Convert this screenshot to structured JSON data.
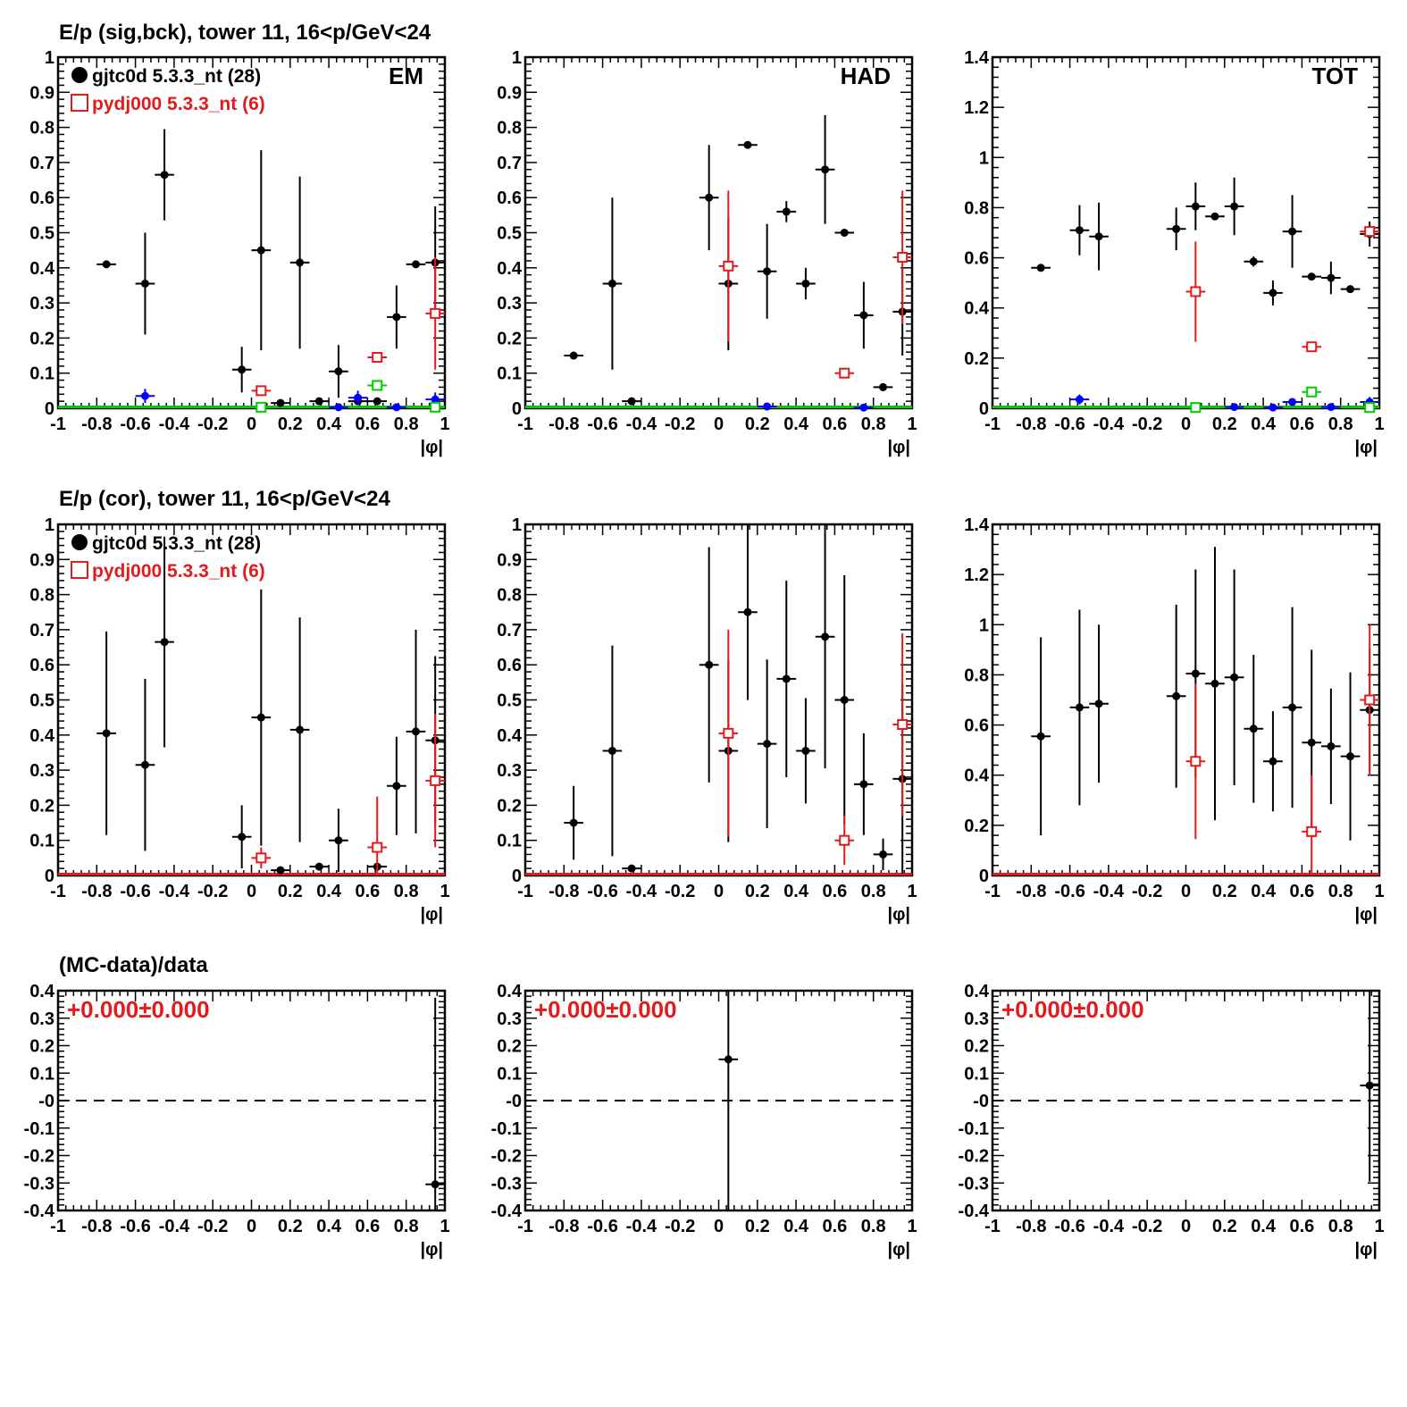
{
  "row_titles": [
    "E/p (sig,bck), tower 11, 16<p/GeV<24",
    "E/p (cor), tower 11, 16<p/GeV<24",
    "(MC-data)/data"
  ],
  "panel_labels": [
    "EM",
    "HAD",
    "TOT"
  ],
  "xlabel": "|φ|",
  "legend": {
    "data": "gjtc0d 5.3.3_nt (28)",
    "mc": "pydj000 5.3.3_nt (6)"
  },
  "ratio_text": "+0.000±0.000",
  "colors": {
    "data": "#000000",
    "mc": "#e41a1c",
    "blue": "#0000ff",
    "green": "#00cc00",
    "refline": "#000000"
  },
  "chart_data": [
    {
      "type": "scatter",
      "row": 0,
      "col": 0,
      "label": "EM",
      "xlabel": "|φ|",
      "xlim": [
        -1,
        1
      ],
      "ylim": [
        0,
        1
      ],
      "xticks": [
        -1,
        -0.8,
        -0.6,
        -0.4,
        -0.2,
        0,
        0.2,
        0.4,
        0.6,
        0.8,
        1
      ],
      "yticks": [
        0,
        0.1,
        0.2,
        0.3,
        0.4,
        0.5,
        0.6,
        0.7,
        0.8,
        0.9,
        1
      ],
      "legend": [
        "gjtc0d 5.3.3_nt (28)",
        "pydj000 5.3.3_nt (6)"
      ],
      "series": [
        {
          "name": "gjtc0d 5.3.3_nt (28)",
          "marker": "dot",
          "color": "#000000",
          "points": [
            [
              -0.75,
              0.41,
              0.005
            ],
            [
              -0.55,
              0.355,
              0.145
            ],
            [
              -0.45,
              0.665,
              0.13
            ],
            [
              -0.05,
              0.11,
              0.065
            ],
            [
              0.05,
              0.45,
              0.285
            ],
            [
              0.15,
              0.015,
              0.005
            ],
            [
              0.25,
              0.415,
              0.245
            ],
            [
              0.35,
              0.02,
              0.005
            ],
            [
              0.45,
              0.105,
              0.075
            ],
            [
              0.55,
              0.02,
              0.01
            ],
            [
              0.65,
              0.02,
              0.01
            ],
            [
              0.75,
              0.26,
              0.09
            ],
            [
              0.85,
              0.41,
              0.005
            ],
            [
              0.95,
              0.415,
              0.16
            ]
          ]
        },
        {
          "name": "pydj000 5.3.3_nt (6)",
          "marker": "square",
          "color": "#e41a1c",
          "points": [
            [
              0.05,
              0.05,
              0.005
            ],
            [
              0.65,
              0.145,
              0.005
            ],
            [
              0.95,
              0.27,
              0.16
            ]
          ]
        },
        {
          "marker": "dot",
          "color": "#0000ff",
          "points": [
            [
              -0.55,
              0.035,
              0.02
            ],
            [
              0.45,
              0.003,
              0.002
            ],
            [
              0.55,
              0.03,
              0.02
            ],
            [
              0.75,
              0.003,
              0.002
            ],
            [
              0.95,
              0.025,
              0.02
            ]
          ]
        },
        {
          "marker": "square",
          "color": "#00cc00",
          "points": [
            [
              0.05,
              0.003,
              0.002
            ],
            [
              0.65,
              0.065,
              0.01
            ],
            [
              0.95,
              0.003,
              0.002
            ]
          ]
        }
      ]
    },
    {
      "type": "scatter",
      "row": 0,
      "col": 1,
      "label": "HAD",
      "xlabel": "|φ|",
      "xlim": [
        -1,
        1
      ],
      "ylim": [
        0,
        1
      ],
      "xticks": [
        -1,
        -0.8,
        -0.6,
        -0.4,
        -0.2,
        0,
        0.2,
        0.4,
        0.6,
        0.8,
        1
      ],
      "yticks": [
        0,
        0.1,
        0.2,
        0.3,
        0.4,
        0.5,
        0.6,
        0.7,
        0.8,
        0.9,
        1
      ],
      "series": [
        {
          "marker": "dot",
          "color": "#000000",
          "points": [
            [
              -0.75,
              0.15,
              0.005
            ],
            [
              -0.55,
              0.355,
              0.245
            ],
            [
              -0.45,
              0.02,
              0.005
            ],
            [
              -0.05,
              0.6,
              0.15
            ],
            [
              0.05,
              0.355,
              0.19
            ],
            [
              0.15,
              0.75,
              0.005
            ],
            [
              0.25,
              0.39,
              0.135
            ],
            [
              0.35,
              0.56,
              0.03
            ],
            [
              0.45,
              0.355,
              0.045
            ],
            [
              0.55,
              0.68,
              0.155
            ],
            [
              0.65,
              0.5,
              0.005
            ],
            [
              0.75,
              0.265,
              0.095
            ],
            [
              0.85,
              0.06,
              0.005
            ],
            [
              0.95,
              0.275,
              0.125
            ]
          ]
        },
        {
          "marker": "square",
          "color": "#e41a1c",
          "points": [
            [
              0.05,
              0.405,
              0.215
            ],
            [
              0.65,
              0.1,
              0.005
            ],
            [
              0.95,
              0.43,
              0.19
            ]
          ]
        },
        {
          "marker": "dot",
          "color": "#0000ff",
          "points": [
            [
              0.25,
              0.005,
              0.003
            ],
            [
              0.75,
              0.002,
              0.002
            ]
          ]
        }
      ]
    },
    {
      "type": "scatter",
      "row": 0,
      "col": 2,
      "label": "TOT",
      "xlabel": "|φ|",
      "xlim": [
        -1,
        1
      ],
      "ylim": [
        0,
        1.4
      ],
      "xticks": [
        -1,
        -0.8,
        -0.6,
        -0.4,
        -0.2,
        0,
        0.2,
        0.4,
        0.6,
        0.8,
        1
      ],
      "yticks": [
        0,
        0.2,
        0.4,
        0.6,
        0.8,
        1,
        1.2,
        1.4
      ],
      "series": [
        {
          "marker": "dot",
          "color": "#000000",
          "points": [
            [
              -0.75,
              0.56,
              0.005
            ],
            [
              -0.55,
              0.71,
              0.1
            ],
            [
              -0.45,
              0.685,
              0.135
            ],
            [
              -0.05,
              0.715,
              0.085
            ],
            [
              0.05,
              0.805,
              0.095
            ],
            [
              0.15,
              0.765,
              0.005
            ],
            [
              0.25,
              0.805,
              0.115
            ],
            [
              0.35,
              0.585,
              0.02
            ],
            [
              0.45,
              0.46,
              0.05
            ],
            [
              0.55,
              0.705,
              0.145
            ],
            [
              0.65,
              0.525,
              0.005
            ],
            [
              0.75,
              0.52,
              0.065
            ],
            [
              0.85,
              0.475,
              0.005
            ],
            [
              0.95,
              0.695,
              0.05
            ]
          ]
        },
        {
          "marker": "square",
          "color": "#e41a1c",
          "points": [
            [
              0.05,
              0.465,
              0.2
            ],
            [
              0.65,
              0.245,
              0.005
            ],
            [
              0.95,
              0.705,
              0.02
            ]
          ]
        },
        {
          "marker": "dot",
          "color": "#0000ff",
          "points": [
            [
              -0.55,
              0.035,
              0.02
            ],
            [
              0.25,
              0.005,
              0.003
            ],
            [
              0.45,
              0.003,
              0.002
            ],
            [
              0.55,
              0.025,
              0.015
            ],
            [
              0.75,
              0.005,
              0.003
            ],
            [
              0.95,
              0.025,
              0.02
            ]
          ]
        },
        {
          "marker": "square",
          "color": "#00cc00",
          "points": [
            [
              0.05,
              0.003,
              0.002
            ],
            [
              0.65,
              0.065,
              0.01
            ],
            [
              0.95,
              0.003,
              0.002
            ]
          ]
        }
      ]
    },
    {
      "type": "scatter",
      "row": 1,
      "col": 0,
      "xlabel": "|φ|",
      "xlim": [
        -1,
        1
      ],
      "ylim": [
        0,
        1
      ],
      "xticks": [
        -1,
        -0.8,
        -0.6,
        -0.4,
        -0.2,
        0,
        0.2,
        0.4,
        0.6,
        0.8,
        1
      ],
      "yticks": [
        0,
        0.1,
        0.2,
        0.3,
        0.4,
        0.5,
        0.6,
        0.7,
        0.8,
        0.9,
        1
      ],
      "legend": [
        "gjtc0d 5.3.3_nt (28)",
        "pydj000 5.3.3_nt (6)"
      ],
      "series": [
        {
          "name": "gjtc0d 5.3.3_nt (28)",
          "marker": "dot",
          "color": "#000000",
          "points": [
            [
              -0.75,
              0.405,
              0.29
            ],
            [
              -0.55,
              0.315,
              0.245
            ],
            [
              -0.45,
              0.665,
              0.3
            ],
            [
              -0.05,
              0.11,
              0.09
            ],
            [
              0.05,
              0.45,
              0.365
            ],
            [
              0.15,
              0.015,
              0.005
            ],
            [
              0.25,
              0.415,
              0.32
            ],
            [
              0.35,
              0.025,
              0.005
            ],
            [
              0.45,
              0.1,
              0.09
            ],
            [
              0.65,
              0.025,
              0.01
            ],
            [
              0.75,
              0.255,
              0.14
            ],
            [
              0.85,
              0.41,
              0.29
            ],
            [
              0.95,
              0.385,
              0.24
            ]
          ]
        },
        {
          "name": "pydj000 5.3.3_nt (6)",
          "marker": "square",
          "color": "#e41a1c",
          "points": [
            [
              0.05,
              0.05,
              0.03
            ],
            [
              0.65,
              0.08,
              0.145
            ],
            [
              0.95,
              0.27,
              0.19
            ]
          ]
        }
      ]
    },
    {
      "type": "scatter",
      "row": 1,
      "col": 1,
      "xlabel": "|φ|",
      "xlim": [
        -1,
        1
      ],
      "ylim": [
        0,
        1
      ],
      "xticks": [
        -1,
        -0.8,
        -0.6,
        -0.4,
        -0.2,
        0,
        0.2,
        0.4,
        0.6,
        0.8,
        1
      ],
      "yticks": [
        0,
        0.1,
        0.2,
        0.3,
        0.4,
        0.5,
        0.6,
        0.7,
        0.8,
        0.9,
        1
      ],
      "series": [
        {
          "marker": "dot",
          "color": "#000000",
          "points": [
            [
              -0.75,
              0.15,
              0.105
            ],
            [
              -0.55,
              0.355,
              0.3
            ],
            [
              -0.45,
              0.02,
              0.005
            ],
            [
              -0.05,
              0.6,
              0.335
            ],
            [
              0.05,
              0.355,
              0.26
            ],
            [
              0.15,
              0.75,
              0.25
            ],
            [
              0.25,
              0.375,
              0.24
            ],
            [
              0.35,
              0.56,
              0.28
            ],
            [
              0.45,
              0.355,
              0.15
            ],
            [
              0.55,
              0.68,
              0.375
            ],
            [
              0.65,
              0.5,
              0.355
            ],
            [
              0.75,
              0.26,
              0.145
            ],
            [
              0.85,
              0.06,
              0.045
            ],
            [
              0.95,
              0.275,
              0.27
            ]
          ]
        },
        {
          "marker": "square",
          "color": "#e41a1c",
          "points": [
            [
              0.05,
              0.405,
              0.295
            ],
            [
              0.65,
              0.1,
              0.07
            ],
            [
              0.95,
              0.43,
              0.26
            ]
          ]
        }
      ]
    },
    {
      "type": "scatter",
      "row": 1,
      "col": 2,
      "xlabel": "|φ|",
      "xlim": [
        -1,
        1
      ],
      "ylim": [
        0,
        1.4
      ],
      "xticks": [
        -1,
        -0.8,
        -0.6,
        -0.4,
        -0.2,
        0,
        0.2,
        0.4,
        0.6,
        0.8,
        1
      ],
      "yticks": [
        0,
        0.2,
        0.4,
        0.6,
        0.8,
        1,
        1.2,
        1.4
      ],
      "series": [
        {
          "marker": "dot",
          "color": "#000000",
          "points": [
            [
              -0.75,
              0.555,
              0.395
            ],
            [
              -0.55,
              0.67,
              0.39
            ],
            [
              -0.45,
              0.685,
              0.315
            ],
            [
              -0.05,
              0.715,
              0.365
            ],
            [
              0.05,
              0.805,
              0.415
            ],
            [
              0.15,
              0.765,
              0.545
            ],
            [
              0.25,
              0.79,
              0.43
            ],
            [
              0.35,
              0.585,
              0.295
            ],
            [
              0.45,
              0.455,
              0.2
            ],
            [
              0.55,
              0.67,
              0.4
            ],
            [
              0.65,
              0.53,
              0.37
            ],
            [
              0.75,
              0.515,
              0.23
            ],
            [
              0.85,
              0.475,
              0.335
            ],
            [
              0.95,
              0.66,
              0.245
            ]
          ]
        },
        {
          "marker": "square",
          "color": "#e41a1c",
          "points": [
            [
              0.05,
              0.455,
              0.31
            ],
            [
              0.65,
              0.175,
              0.225
            ],
            [
              0.95,
              0.7,
              0.3
            ]
          ]
        }
      ]
    },
    {
      "type": "scatter",
      "row": 2,
      "col": 0,
      "xlabel": "|φ|",
      "xlim": [
        -1,
        1
      ],
      "ylim": [
        -0.4,
        0.4
      ],
      "xticks": [
        -1,
        -0.8,
        -0.6,
        -0.4,
        -0.2,
        0,
        0.2,
        0.4,
        0.6,
        0.8,
        1
      ],
      "yticks": [
        -0.4,
        -0.3,
        -0.2,
        -0.1,
        0,
        0.1,
        0.2,
        0.3,
        0.4
      ],
      "ytick_labels": [
        "-0.4",
        "-0.3",
        "-0.2",
        "-0.1",
        "-0",
        "0.1",
        "0.2",
        "0.3",
        "0.4"
      ],
      "annotation": "+0.000±0.000",
      "refline": 0,
      "series": [
        {
          "marker": "dot",
          "color": "#000000",
          "points": [
            [
              0.95,
              -0.305,
              0.68
            ]
          ]
        }
      ]
    },
    {
      "type": "scatter",
      "row": 2,
      "col": 1,
      "xlabel": "|φ|",
      "xlim": [
        -1,
        1
      ],
      "ylim": [
        -0.4,
        0.4
      ],
      "xticks": [
        -1,
        -0.8,
        -0.6,
        -0.4,
        -0.2,
        0,
        0.2,
        0.4,
        0.6,
        0.8,
        1
      ],
      "yticks": [
        -0.4,
        -0.3,
        -0.2,
        -0.1,
        0,
        0.1,
        0.2,
        0.3,
        0.4
      ],
      "ytick_labels": [
        "-0.4",
        "-0.3",
        "-0.2",
        "-0.1",
        "-0",
        "0.1",
        "0.2",
        "0.3",
        "0.4"
      ],
      "annotation": "+0.000±0.000",
      "refline": 0,
      "series": [
        {
          "marker": "dot",
          "color": "#000000",
          "points": [
            [
              0.05,
              0.15,
              0.6
            ]
          ]
        }
      ]
    },
    {
      "type": "scatter",
      "row": 2,
      "col": 2,
      "xlabel": "|φ|",
      "xlim": [
        -1,
        1
      ],
      "ylim": [
        -0.4,
        0.4
      ],
      "xticks": [
        -1,
        -0.8,
        -0.6,
        -0.4,
        -0.2,
        0,
        0.2,
        0.4,
        0.6,
        0.8,
        1
      ],
      "yticks": [
        -0.4,
        -0.3,
        -0.2,
        -0.1,
        0,
        0.1,
        0.2,
        0.3,
        0.4
      ],
      "ytick_labels": [
        "-0.4",
        "-0.3",
        "-0.2",
        "-0.1",
        "-0",
        "0.1",
        "0.2",
        "0.3",
        "0.4"
      ],
      "annotation": "+0.000±0.000",
      "refline": 0,
      "series": [
        {
          "marker": "dot",
          "color": "#000000",
          "points": [
            [
              0.95,
              0.055,
              0.35
            ]
          ]
        }
      ]
    }
  ]
}
